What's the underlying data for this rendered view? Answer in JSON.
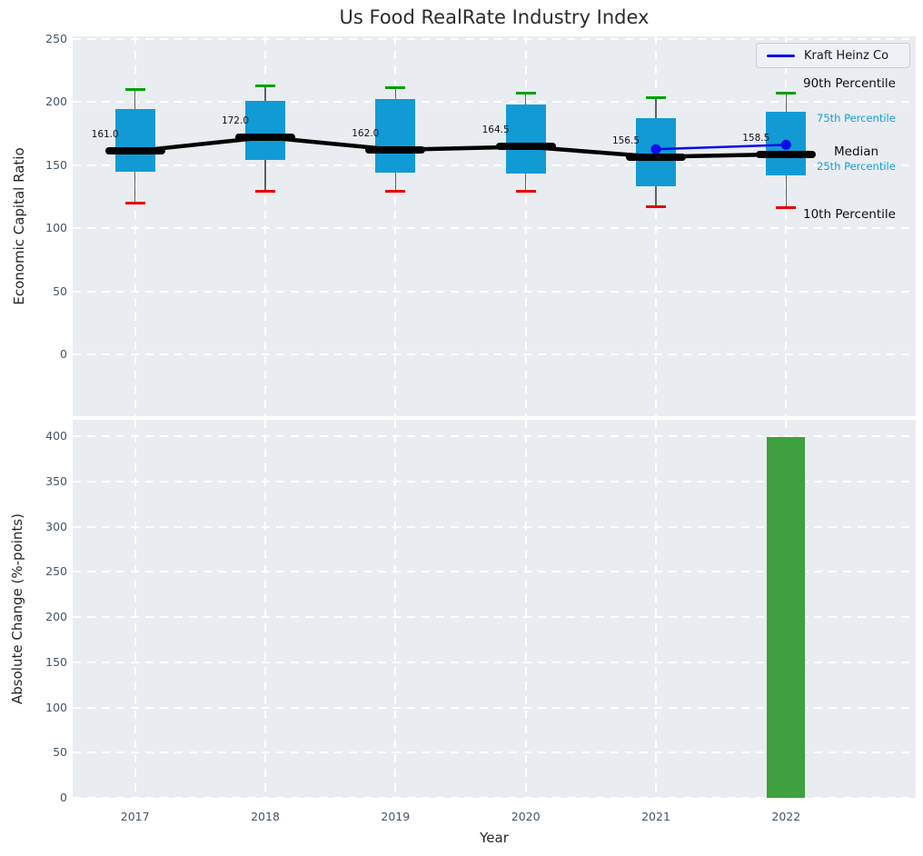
{
  "title": "Us Food RealRate Industry Index",
  "legend": {
    "label": "Kraft Heinz Co"
  },
  "annotations": {
    "p90": "90th Percentile",
    "p75": "75th Percentile",
    "median": "Median",
    "p25": "25th Percentile",
    "p10": "10th Percentile"
  },
  "colors": {
    "box_fill": "#129ad5",
    "median_line": "#000000",
    "whisker_cap_high": "#00a000",
    "whisker_cap_low": "#e60000",
    "series_line": "#0b0bea",
    "bar_fill": "#3ea03e",
    "annotation_accent": "#139cd8",
    "axes_background": "#e9edf1",
    "tick_label": "#44546a"
  },
  "chart_data": [
    {
      "type": "boxplot",
      "title": "Us Food RealRate Industry Index",
      "xlabel": "Year",
      "ylabel": "Economic Capital Ratio",
      "categories": [
        "2017",
        "2018",
        "2019",
        "2020",
        "2021",
        "2022"
      ],
      "yticks": [
        0,
        50,
        100,
        150,
        200,
        250
      ],
      "ylim": [
        -49,
        252
      ],
      "grid": true,
      "legend_position": "upper right",
      "boxes": [
        {
          "year": "2017",
          "whisker_low": 120,
          "q1": 145,
          "median": 161.0,
          "q3": 194,
          "whisker_high": 210
        },
        {
          "year": "2018",
          "whisker_low": 129,
          "q1": 154,
          "median": 172.0,
          "q3": 201,
          "whisker_high": 213
        },
        {
          "year": "2019",
          "whisker_low": 129,
          "q1": 144,
          "median": 162.0,
          "q3": 202,
          "whisker_high": 211
        },
        {
          "year": "2020",
          "whisker_low": 129,
          "q1": 143,
          "median": 164.5,
          "q3": 198,
          "whisker_high": 207
        },
        {
          "year": "2021",
          "whisker_low": 117,
          "q1": 133,
          "median": 156.5,
          "q3": 187,
          "whisker_high": 203
        },
        {
          "year": "2022",
          "whisker_low": 116,
          "q1": 142,
          "median": 158.5,
          "q3": 192,
          "whisker_high": 207
        }
      ],
      "median_labels": [
        "161.0",
        "172.0",
        "162.0",
        "164.5",
        "156.5",
        "158.5"
      ],
      "series": [
        {
          "name": "Kraft Heinz Co",
          "x": [
            "2021",
            "2022"
          ],
          "values": [
            162.5,
            166
          ]
        }
      ]
    },
    {
      "type": "bar",
      "xlabel": "Year",
      "ylabel": "Absolute Change (%-points)",
      "categories": [
        "2017",
        "2018",
        "2019",
        "2020",
        "2021",
        "2022"
      ],
      "values": [
        0,
        0,
        0,
        0,
        0,
        399
      ],
      "yticks": [
        0,
        50,
        100,
        150,
        200,
        250,
        300,
        350,
        400
      ],
      "ylim": [
        0,
        418
      ],
      "grid": true
    }
  ]
}
